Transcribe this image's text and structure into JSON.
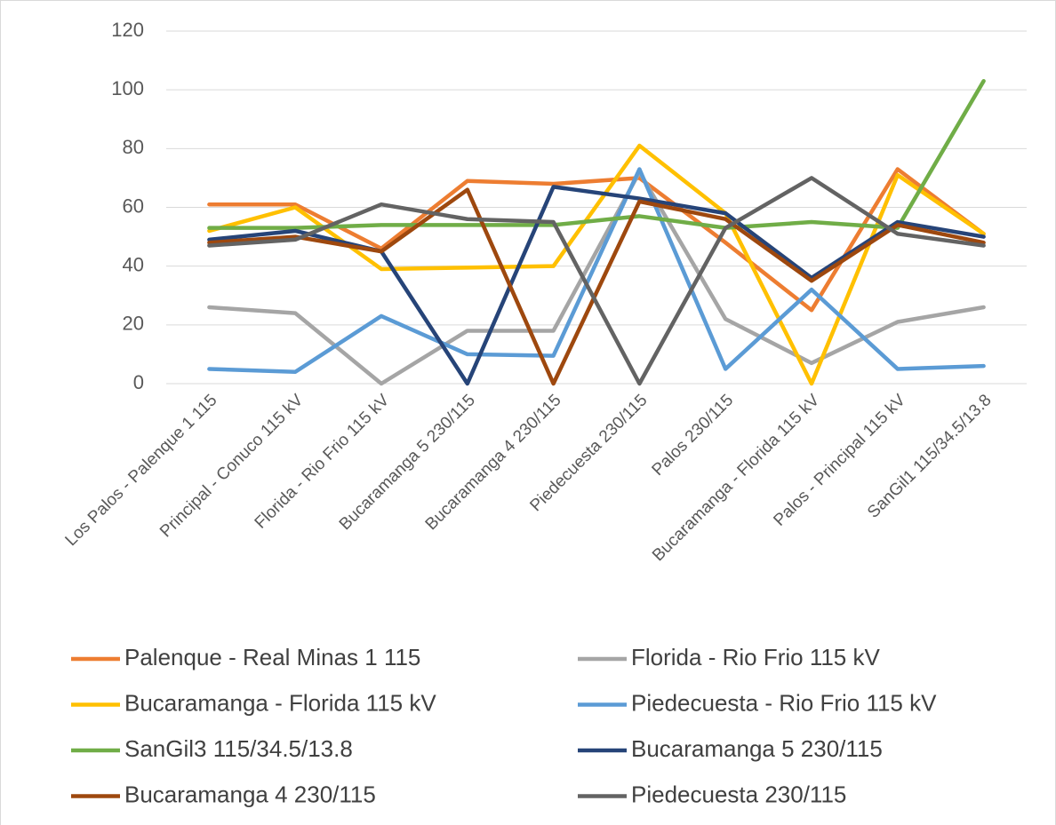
{
  "chart_data": {
    "type": "line",
    "categories": [
      "Los Palos - Palenque 1 115",
      "Principal - Conuco 115 kV",
      "Florida - Rio Frio 115 kV",
      "Bucaramanga 5 230/115",
      "Bucaramanga 4 230/115",
      "Piedecuesta 230/115",
      "Palos 230/115",
      "Bucaramanga - Florida 115 kV",
      "Palos -  Principal 115 kV",
      "SanGil1 115/34.5/13.8"
    ],
    "series": [
      {
        "name": "Palenque - Real Minas 1 115",
        "color": "#ED7D31",
        "values": [
          61,
          61,
          46,
          69,
          68,
          70,
          48,
          25,
          73,
          51
        ]
      },
      {
        "name": "Florida - Rio Frio 115 kV",
        "color": "#A5A5A5",
        "values": [
          26,
          24,
          0,
          18,
          18,
          72,
          22,
          7,
          21,
          26
        ]
      },
      {
        "name": "Bucaramanga - Florida 115 kV",
        "color": "#FFC000",
        "values": [
          52,
          60,
          39,
          39.5,
          40,
          81,
          58,
          0,
          71,
          51
        ]
      },
      {
        "name": "Piedecuesta - Rio Frio 115 kV",
        "color": "#5B9BD5",
        "values": [
          5,
          4,
          23,
          10,
          9.5,
          73,
          5,
          32,
          5,
          6
        ]
      },
      {
        "name": "SanGil3 115/34.5/13.8",
        "color": "#70AD47",
        "values": [
          53,
          53,
          54,
          54,
          54,
          57,
          53,
          55,
          53,
          103
        ]
      },
      {
        "name": "Bucaramanga 5 230/115",
        "color": "#264478",
        "values": [
          49,
          52,
          45,
          0,
          67,
          63,
          58,
          36,
          55,
          50
        ]
      },
      {
        "name": "Bucaramanga 4 230/115",
        "color": "#9E480E",
        "values": [
          48,
          50,
          45,
          66,
          0,
          62,
          56,
          35,
          54,
          48
        ]
      },
      {
        "name": "Piedecuesta 230/115",
        "color": "#636363",
        "values": [
          47,
          49,
          61,
          56,
          55,
          0,
          53,
          70,
          51,
          47
        ]
      }
    ],
    "ylim": [
      0,
      120
    ],
    "yticks": [
      0,
      20,
      40,
      60,
      80,
      100,
      120
    ],
    "grid": true,
    "legend": "bottom"
  }
}
